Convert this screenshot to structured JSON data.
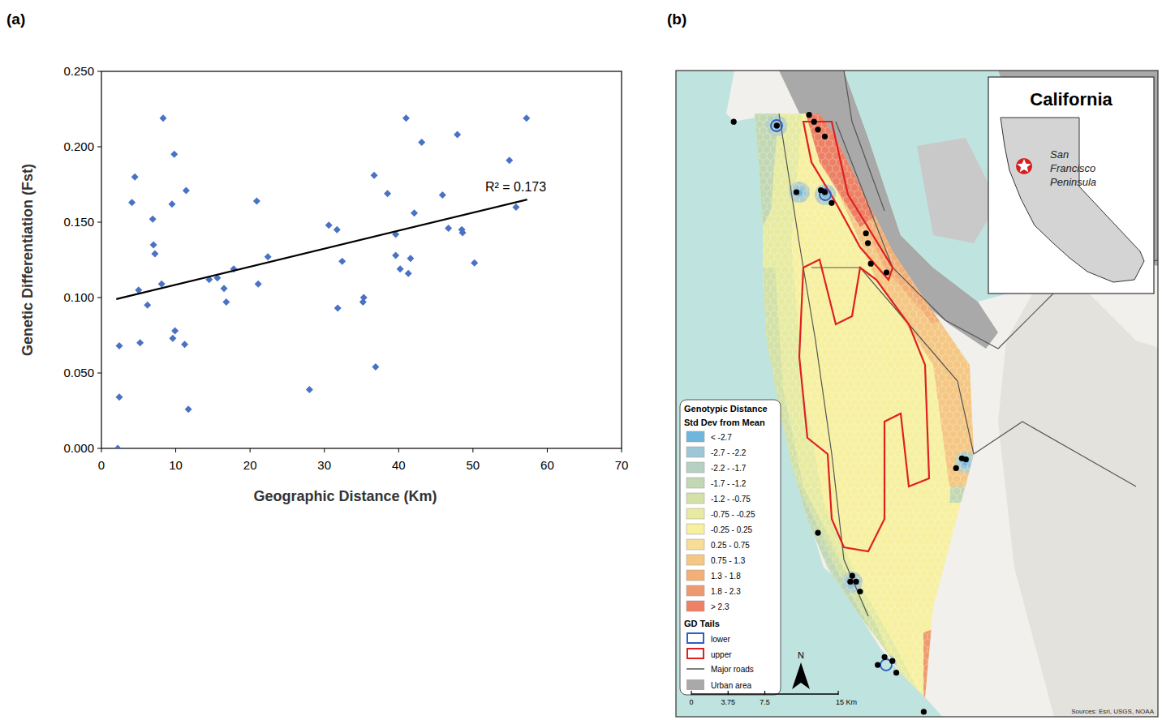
{
  "chart_data": {
    "type": "scatter",
    "panel_label": "(a)",
    "x_label": "Geographic Distance  (Km)",
    "y_label": "Genetic Differentiation (Fst)",
    "annotations": [
      "R² = 0.173"
    ],
    "xlim": [
      0,
      70
    ],
    "xticks": [
      0,
      10,
      20,
      30,
      40,
      50,
      60,
      70
    ],
    "ylim": [
      0,
      0.25
    ],
    "yticks": [
      {
        "value": 0,
        "label": "0.000"
      },
      {
        "value": 0.05,
        "label": "0.050"
      },
      {
        "value": 0.1,
        "label": "0.100"
      },
      {
        "value": 0.15,
        "label": "0.150"
      },
      {
        "value": 0.2,
        "label": "0.200"
      },
      {
        "value": 0.25,
        "label": "0.250"
      }
    ],
    "grid": false,
    "series": [
      {
        "type": "scatter",
        "color": "#4a72c4",
        "marker": "diamond",
        "x": [
          2.2,
          2.4,
          2.4,
          4.5,
          4.1,
          5.0,
          5.2,
          8.3,
          9.8,
          9.5,
          11.4,
          6.9,
          7.0,
          7.2,
          6.2,
          8.1,
          9.6,
          9.9,
          11.2,
          11.7,
          14.5,
          15.6,
          16.5,
          16.8,
          17.8,
          20.9,
          21.1,
          22.4,
          28.0,
          30.6,
          31.7,
          31.8,
          32.4,
          35.2,
          35.3,
          36.7,
          36.9,
          38.5,
          39.6,
          39.6,
          40.2,
          41.0,
          41.3,
          41.6,
          42.1,
          43.1,
          45.9,
          46.7,
          47.9,
          48.5,
          48.6,
          50.2,
          54.9,
          55.8,
          57.2
        ],
        "values": [
          0.0,
          0.068,
          0.034,
          0.18,
          0.163,
          0.105,
          0.07,
          0.219,
          0.195,
          0.162,
          0.171,
          0.152,
          0.135,
          0.129,
          0.095,
          0.109,
          0.073,
          0.078,
          0.069,
          0.026,
          0.112,
          0.113,
          0.106,
          0.097,
          0.119,
          0.164,
          0.109,
          0.127,
          0.039,
          0.148,
          0.145,
          0.093,
          0.124,
          0.097,
          0.1,
          0.181,
          0.054,
          0.169,
          0.142,
          0.128,
          0.119,
          0.219,
          0.116,
          0.126,
          0.156,
          0.203,
          0.168,
          0.146,
          0.208,
          0.145,
          0.143,
          0.123,
          0.191,
          0.16,
          0.219
        ]
      },
      {
        "type": "line",
        "color": "#000000",
        "line_style": "solid",
        "x": [
          2.0,
          57.3
        ],
        "values": [
          0.099,
          0.165
        ]
      }
    ]
  },
  "map": {
    "panel_label": "(b)",
    "legend": {
      "title": "Genotypic Distance",
      "subtitle": "Std Dev from Mean",
      "classes": [
        {
          "label": "< -2.7",
          "color": "#6fb6dc"
        },
        {
          "label": "-2.7 - -2.2",
          "color": "#9fc6d6"
        },
        {
          "label": "-2.2 - -1.7",
          "color": "#b7d0c4"
        },
        {
          "label": "-1.7 - -1.2",
          "color": "#c2d8b4"
        },
        {
          "label": "-1.2 - -0.75",
          "color": "#d3e1a6"
        },
        {
          "label": "-0.75 - -0.25",
          "color": "#e6eba1"
        },
        {
          "label": "-0.25 - 0.25",
          "color": "#f6f0a0"
        },
        {
          "label": "0.25 - 0.75",
          "color": "#f7dd96"
        },
        {
          "label": "0.75 - 1.3",
          "color": "#f5c784"
        },
        {
          "label": "1.3 - 1.8",
          "color": "#f2b077"
        },
        {
          "label": "1.8 - 2.3",
          "color": "#ef9a6e"
        },
        {
          "label": "> 2.3",
          "color": "#ec8166"
        }
      ],
      "tails_title": "GD Tails",
      "tails": [
        {
          "label": "lower",
          "color": "#2f5fbf"
        },
        {
          "label": "upper",
          "color": "#e02020"
        }
      ],
      "other": [
        {
          "label": "Major roads",
          "color": "#555555"
        },
        {
          "label": "Urban area",
          "color": "#a9a9a9"
        }
      ]
    },
    "inset": {
      "title": "California",
      "label": "San Francisco Peninsula"
    },
    "north": "N",
    "scale_bar": {
      "ticks": [
        0,
        3.75,
        7.5,
        {
          "value": 15,
          "label": "15 Km"
        }
      ]
    },
    "sources": "Sources: Esri, USGS, NOAA",
    "sites": [
      [
        5.9,
        60.8
      ],
      [
        10.3,
        60.4
      ],
      [
        13.6,
        61.5
      ],
      [
        14.1,
        60.8
      ],
      [
        14.5,
        60.0
      ],
      [
        15.2,
        59.3
      ],
      [
        12.3,
        53.6
      ],
      [
        14.8,
        53.8
      ],
      [
        15.2,
        53.6
      ],
      [
        15.9,
        52.5
      ],
      [
        19.4,
        49.4
      ],
      [
        19.6,
        48.4
      ],
      [
        19.9,
        46.3
      ],
      [
        21.5,
        45.4
      ],
      [
        29.2,
        26.4
      ],
      [
        29.6,
        26.3
      ],
      [
        28.6,
        25.4
      ],
      [
        14.5,
        18.8
      ],
      [
        18.0,
        14.4
      ],
      [
        18.4,
        13.8
      ],
      [
        17.8,
        13.8
      ],
      [
        18.8,
        12.8
      ],
      [
        21.3,
        6.1
      ],
      [
        22.1,
        5.7
      ],
      [
        22.5,
        4.5
      ],
      [
        20.6,
        5.3
      ],
      [
        25.3,
        0.5
      ]
    ]
  }
}
